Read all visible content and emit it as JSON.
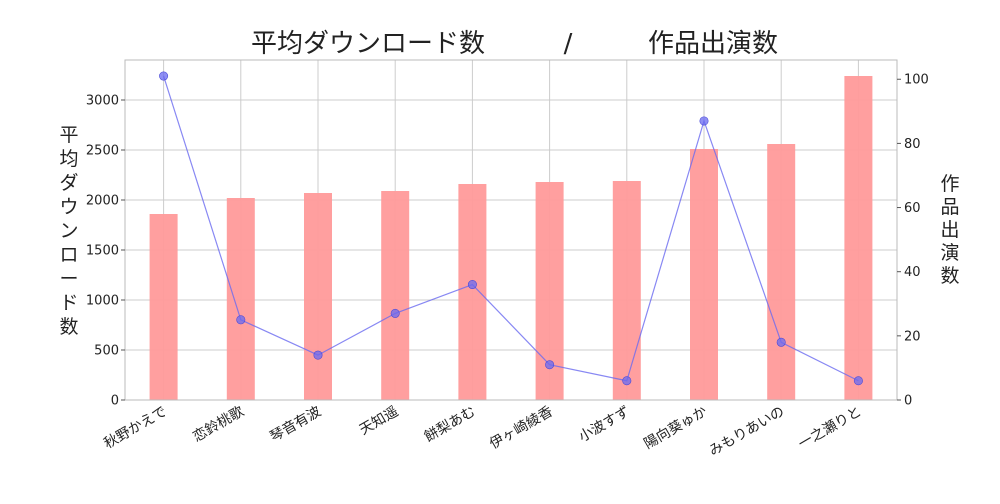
{
  "chart_data": {
    "type": "bar+line",
    "title_left": "平均ダウンロード数",
    "title_sep": "/",
    "title_right": "作品出演数",
    "categories": [
      "秋野かえで",
      "恋鈴桃歌",
      "琴音有波",
      "天知遥",
      "餅梨あむ",
      "伊ヶ崎綾香",
      "小波すず",
      "陽向葵ゅか",
      "みもりあいの",
      "一之瀬りと"
    ],
    "series": [
      {
        "name": "平均ダウンロード数",
        "type": "bar",
        "axis": "left",
        "color": "#ff9a9a",
        "values": [
          1860,
          2020,
          2070,
          2090,
          2160,
          2180,
          2190,
          2510,
          2560,
          3240
        ]
      },
      {
        "name": "作品出演数",
        "type": "line",
        "axis": "right",
        "color": "#6a6af0",
        "values": [
          101,
          25,
          14,
          27,
          36,
          11,
          6,
          87,
          18,
          6
        ]
      }
    ],
    "y_left": {
      "label": "平均ダウンロード数",
      "range": [
        0,
        3400
      ],
      "ticks": [
        0,
        500,
        1000,
        1500,
        2000,
        2500,
        3000
      ]
    },
    "y_right": {
      "label": "作品出演数",
      "range": [
        0,
        106
      ],
      "ticks": [
        0,
        20,
        40,
        60,
        80,
        100
      ]
    },
    "grid": true
  }
}
